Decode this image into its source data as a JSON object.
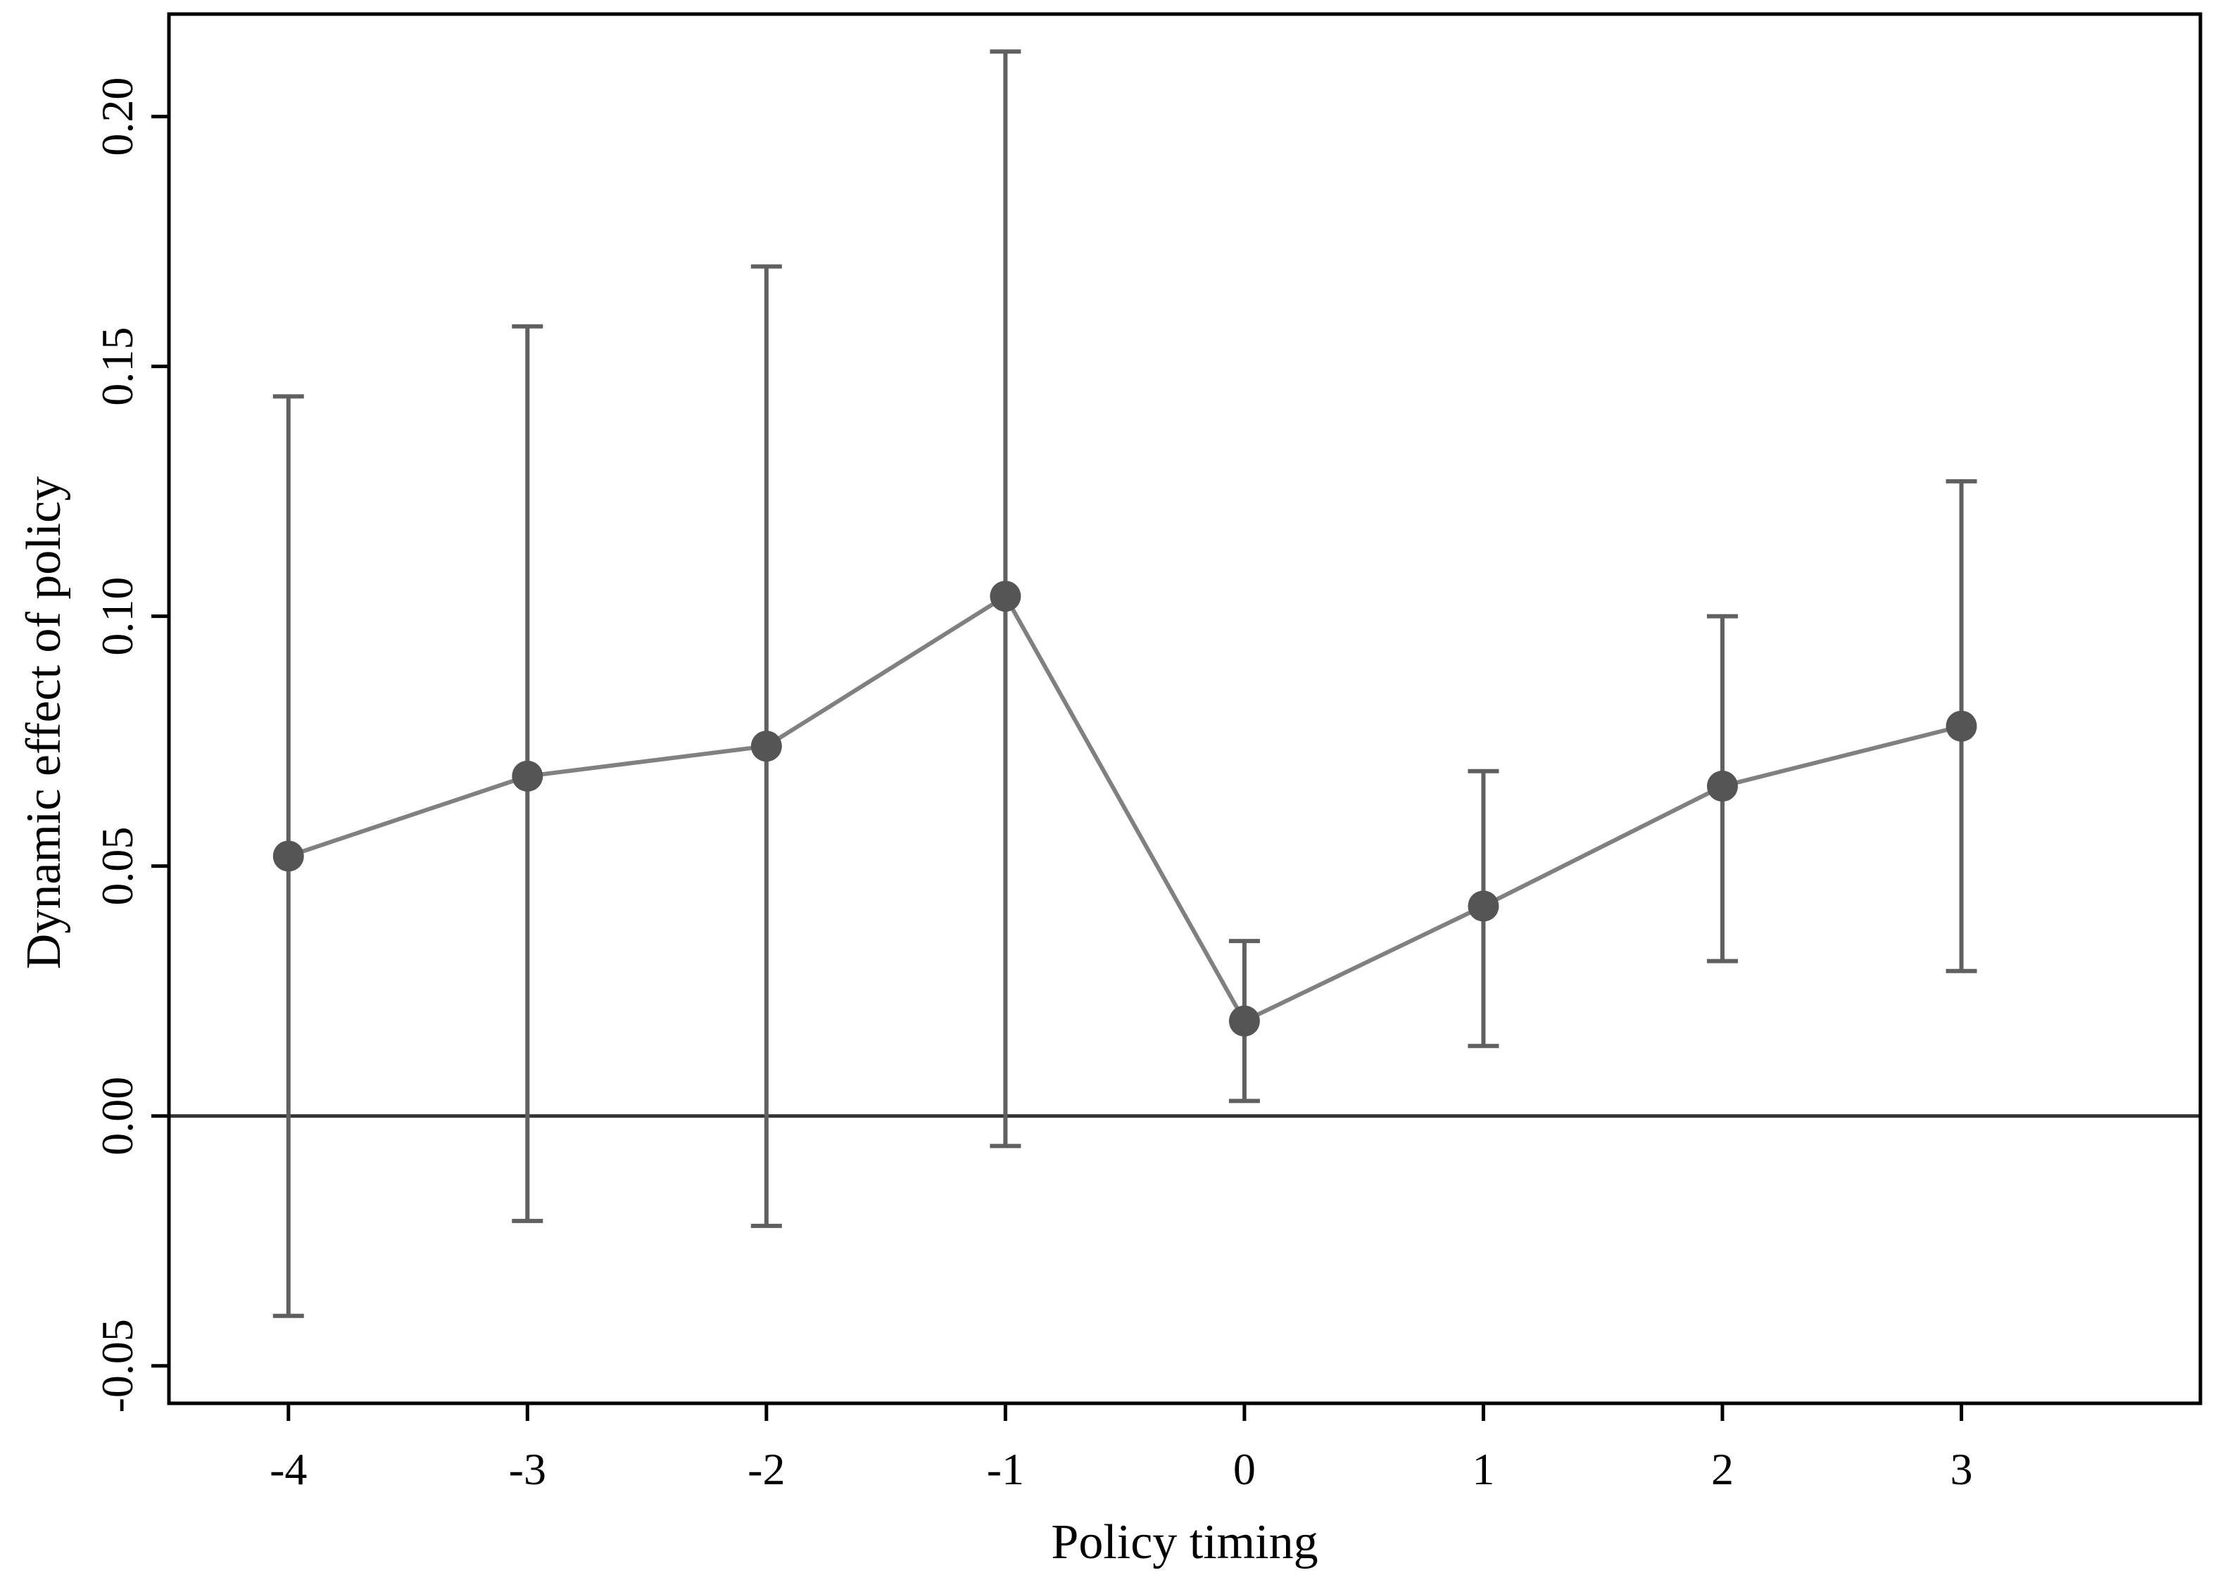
{
  "chart_data": {
    "type": "scatter",
    "title": "",
    "xlabel": "Policy timing",
    "ylabel": "Dynamic effect of policy",
    "xlim": [
      -4.5,
      4.0
    ],
    "ylim": [
      -0.0575,
      0.2205
    ],
    "x_ticks": [
      "-4",
      "-3",
      "-2",
      "-1",
      "0",
      "1",
      "2",
      "3"
    ],
    "y_ticks": [
      "-0.05",
      "0.00",
      "0.05",
      "0.10",
      "0.15",
      "0.20"
    ],
    "reference_line_y": 0,
    "grid": false,
    "legend": "none",
    "series": [
      {
        "points": [
          {
            "x": -4,
            "y": 0.052,
            "lower": -0.04,
            "upper": 0.144
          },
          {
            "x": -3,
            "y": 0.068,
            "lower": -0.021,
            "upper": 0.158
          },
          {
            "x": -2,
            "y": 0.074,
            "lower": -0.022,
            "upper": 0.17
          },
          {
            "x": -1,
            "y": 0.104,
            "lower": -0.006,
            "upper": 0.213
          },
          {
            "x": 0,
            "y": 0.019,
            "lower": 0.003,
            "upper": 0.035
          },
          {
            "x": 1,
            "y": 0.042,
            "lower": 0.014,
            "upper": 0.069
          },
          {
            "x": 2,
            "y": 0.066,
            "lower": 0.031,
            "upper": 0.1
          },
          {
            "x": 3,
            "y": 0.078,
            "lower": 0.029,
            "upper": 0.127
          }
        ]
      }
    ],
    "colors": {
      "line": "#808080",
      "marker": "#555555",
      "error_bar": "#606060",
      "axis": "#000000",
      "reference_line": "#333333"
    }
  }
}
